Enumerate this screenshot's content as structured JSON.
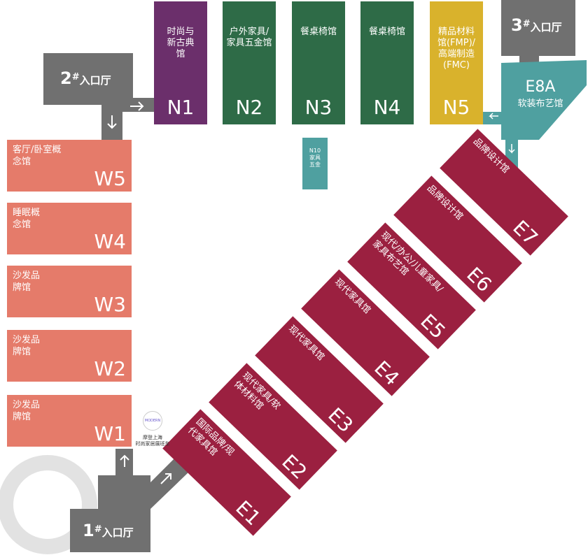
{
  "entrances": [
    {
      "num": "2",
      "mark": "#",
      "label": "入口厅"
    },
    {
      "num": "3",
      "mark": "#",
      "label": "入口厅"
    },
    {
      "num": "1",
      "mark": "#",
      "label": "入口厅"
    }
  ],
  "north_halls": [
    {
      "label": "时尚与新古典馆",
      "code": "N1",
      "color": "#6b2f6b"
    },
    {
      "label": "户外家具/家具五金馆",
      "code": "N2",
      "color": "#2e6b47"
    },
    {
      "label": "餐桌椅馆",
      "code": "N3",
      "color": "#2e6b47"
    },
    {
      "label": "餐桌椅馆",
      "code": "N4",
      "color": "#2e6b47"
    },
    {
      "label": "精品材料馆(FMP)/高端制造(FMC)",
      "code": "N5",
      "color": "#d9b22c"
    }
  ],
  "n10": {
    "code": "N10",
    "label": "家具五金",
    "color": "#4fa0a0"
  },
  "e8a": {
    "code": "E8A",
    "label": "软装布艺馆",
    "color": "#4fa0a0"
  },
  "west_halls": [
    {
      "label": "客厅/卧室概念馆",
      "code": "W5"
    },
    {
      "label": "睡眠概念馆",
      "code": "W4"
    },
    {
      "label": "沙发品牌馆",
      "code": "W3"
    },
    {
      "label": "沙发品牌馆",
      "code": "W2"
    },
    {
      "label": "沙发品牌馆",
      "code": "W1"
    }
  ],
  "east_halls": [
    {
      "label": "国际品牌/现代家具馆",
      "code": "E1"
    },
    {
      "label": "现代家具/软体材料馆",
      "code": "E2"
    },
    {
      "label": "现代家具馆",
      "code": "E3"
    },
    {
      "label": "现代家具馆",
      "code": "E4"
    },
    {
      "label": "现代/办公/儿童家具/家具布艺馆",
      "code": "E5"
    },
    {
      "label": "品牌设计馆",
      "code": "E6"
    },
    {
      "label": "品牌设计馆",
      "code": "E7"
    }
  ],
  "shuttle": {
    "logo_text": "MODERN",
    "line1": "摩登上海",
    "line2": "时尚家居展班车"
  },
  "colors": {
    "entrance": "#707070",
    "west": "#e57b6a",
    "east": "#9b2040",
    "ring": "#e2e2e2"
  }
}
